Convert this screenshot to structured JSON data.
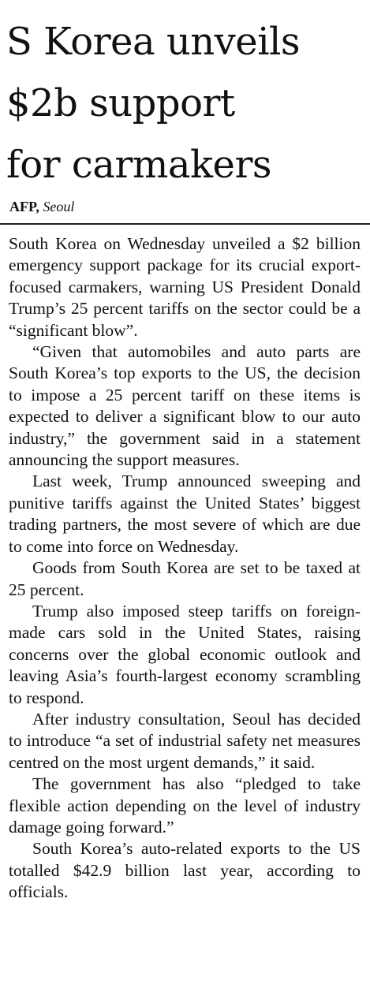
{
  "headline": {
    "line1": "S Korea unveils",
    "line2": "$2b support",
    "line3": "for carmakers"
  },
  "byline": {
    "agency": "AFP,",
    "place": "Seoul"
  },
  "article": {
    "paragraphs": [
      "South Korea on Wednesday unveiled a $2 billion emergency support package for its crucial export-focused carmakers, warning US President Donald Trump’s 25 percent tariffs on the sector could be a “significant blow”.",
      "“Given that automobiles and auto parts are South Korea’s top exports to the US, the decision to impose a 25 percent tariff on these items is expected to deliver a significant blow to our auto industry,” the government said in a statement announcing the support measures.",
      "Last week, Trump announced sweeping and punitive tariffs against the United States’ biggest trading partners, the most severe of which are due to come into force on Wednesday.",
      "Goods from South Korea are set to be taxed at 25 percent.",
      "Trump also imposed steep tariffs on foreign-made cars sold in the United States, raising concerns over the global economic outlook and leaving Asia’s fourth-largest economy scrambling to respond.",
      "After industry consultation, Seoul has decided to introduce “a set of industrial safety net measures centred on the most urgent demands,” it said.",
      "The government has also “pledged to take flexible action depending on the level of industry damage going forward.”",
      "South Korea’s auto-related exports to the US totalled $42.9 billion last year, according to officials."
    ]
  }
}
